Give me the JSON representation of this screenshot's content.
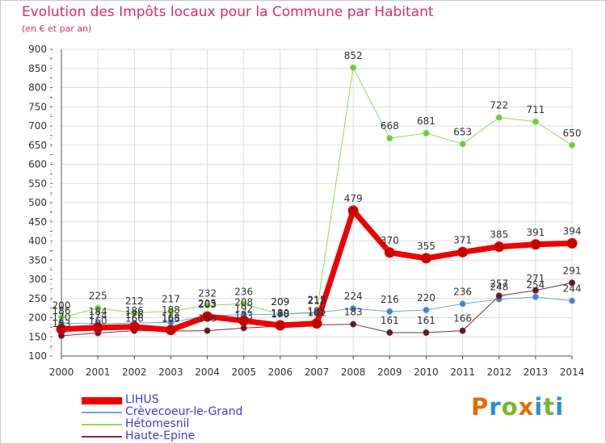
{
  "header": {
    "title": "Evolution des Impôts locaux pour la Commune par Habitant",
    "subtitle": "(en € et par an)"
  },
  "logo": {
    "text": "Proxiti",
    "colors": [
      "#e36c0a",
      "#2a8dd6",
      "#76b82a",
      "#e36c0a",
      "#2a8dd6",
      "#76b82a",
      "#2a8dd6"
    ]
  },
  "chart_data": {
    "type": "line",
    "title": "Evolution des Impôts locaux pour la Commune par Habitant",
    "subtitle": "(en € et par an)",
    "xlabel": "",
    "ylabel": "",
    "ylim": [
      100,
      900
    ],
    "yticks": [
      100,
      150,
      200,
      250,
      300,
      350,
      400,
      450,
      500,
      550,
      600,
      650,
      700,
      750,
      800,
      850,
      900
    ],
    "grid": true,
    "legend_position": "bottom-left",
    "x": [
      2000,
      2001,
      2002,
      2003,
      2004,
      2005,
      2006,
      2007,
      2008,
      2009,
      2010,
      2011,
      2012,
      2013,
      2014
    ],
    "series": [
      {
        "name": "Hétomesnil",
        "color": "#8fdc5a",
        "marker": "#6cc93a",
        "width": 1,
        "values": [
          200,
          225,
          212,
          217,
          232,
          236,
          209,
          215,
          852,
          668,
          681,
          653,
          722,
          711,
          650
        ]
      },
      {
        "name": "Crèvecoeur-le-Grand",
        "color": "#6fa8dc",
        "marker": "#3d85c6",
        "width": 1,
        "values": [
          186,
          184,
          186,
          188,
          205,
          208,
          209,
          213,
          224,
          216,
          220,
          236,
          248,
          254,
          244
        ]
      },
      {
        "name": "Haute-Epine",
        "color": "#7b2f3a",
        "marker": "#5e1a25",
        "width": 1,
        "values": [
          153,
          160,
          166,
          165,
          166,
          173,
          178,
          181,
          183,
          161,
          161,
          166,
          257,
          271,
          291
        ]
      },
      {
        "name": "LIHUS",
        "color": "#ee0000",
        "marker": "#c40000",
        "width": 7,
        "values": [
          170,
          174,
          176,
          168,
          203,
          192,
          180,
          185,
          479,
          370,
          355,
          371,
          385,
          391,
          394
        ]
      }
    ],
    "value_labels": [
      {
        "text": "200",
        "x": 2000,
        "y": 200
      },
      {
        "text": "225",
        "x": 2001,
        "y": 225
      },
      {
        "text": "212",
        "x": 2002,
        "y": 212
      },
      {
        "text": "217",
        "x": 2003,
        "y": 217
      },
      {
        "text": "232",
        "x": 2004,
        "y": 232
      },
      {
        "text": "236",
        "x": 2005,
        "y": 236
      },
      {
        "text": "209",
        "x": 2006,
        "y": 209
      },
      {
        "text": "215",
        "x": 2007,
        "y": 215
      },
      {
        "text": "852",
        "x": 2008,
        "y": 852
      },
      {
        "text": "668",
        "x": 2009,
        "y": 668
      },
      {
        "text": "681",
        "x": 2010,
        "y": 681
      },
      {
        "text": "653",
        "x": 2011,
        "y": 653
      },
      {
        "text": "722",
        "x": 2012,
        "y": 722
      },
      {
        "text": "711",
        "x": 2013,
        "y": 711
      },
      {
        "text": "650",
        "x": 2014,
        "y": 650
      },
      {
        "text": "186",
        "x": 2000,
        "y": 186
      },
      {
        "text": "184",
        "x": 2001,
        "y": 184
      },
      {
        "text": "186",
        "x": 2002,
        "y": 186
      },
      {
        "text": "188",
        "x": 2003,
        "y": 188
      },
      {
        "text": "205",
        "x": 2004,
        "y": 205
      },
      {
        "text": "208",
        "x": 2005,
        "y": 208
      },
      {
        "text": "209",
        "x": 2006,
        "y": 209
      },
      {
        "text": "213",
        "x": 2007,
        "y": 213
      },
      {
        "text": "224",
        "x": 2008,
        "y": 224
      },
      {
        "text": "216",
        "x": 2009,
        "y": 216
      },
      {
        "text": "220",
        "x": 2010,
        "y": 220
      },
      {
        "text": "236",
        "x": 2011,
        "y": 236
      },
      {
        "text": "248",
        "x": 2012,
        "y": 248
      },
      {
        "text": "254",
        "x": 2013,
        "y": 254
      },
      {
        "text": "244",
        "x": 2014,
        "y": 244
      },
      {
        "text": "153",
        "x": 2000,
        "y": 153
      },
      {
        "text": "160",
        "x": 2001,
        "y": 160
      },
      {
        "text": "166",
        "x": 2002,
        "y": 166
      },
      {
        "text": "165",
        "x": 2003,
        "y": 165
      },
      {
        "text": "166",
        "x": 2004,
        "y": 166
      },
      {
        "text": "173",
        "x": 2005,
        "y": 173
      },
      {
        "text": "178",
        "x": 2006,
        "y": 178
      },
      {
        "text": "181",
        "x": 2007,
        "y": 181
      },
      {
        "text": "183",
        "x": 2008,
        "y": 183
      },
      {
        "text": "161",
        "x": 2009,
        "y": 161
      },
      {
        "text": "161",
        "x": 2010,
        "y": 161
      },
      {
        "text": "166",
        "x": 2011,
        "y": 166
      },
      {
        "text": "257",
        "x": 2012,
        "y": 257
      },
      {
        "text": "271",
        "x": 2013,
        "y": 271
      },
      {
        "text": "291",
        "x": 2014,
        "y": 291
      },
      {
        "text": "170",
        "x": 2000,
        "y": 170
      },
      {
        "text": "174",
        "x": 2001,
        "y": 174
      },
      {
        "text": "176",
        "x": 2002,
        "y": 176
      },
      {
        "text": "168",
        "x": 2003,
        "y": 168
      },
      {
        "text": "203",
        "x": 2004,
        "y": 203
      },
      {
        "text": "192",
        "x": 2005,
        "y": 192
      },
      {
        "text": "180",
        "x": 2006,
        "y": 180
      },
      {
        "text": "185",
        "x": 2007,
        "y": 185
      },
      {
        "text": "479",
        "x": 2008,
        "y": 479
      },
      {
        "text": "370",
        "x": 2009,
        "y": 370
      },
      {
        "text": "355",
        "x": 2010,
        "y": 355
      },
      {
        "text": "371",
        "x": 2011,
        "y": 371
      },
      {
        "text": "385",
        "x": 2012,
        "y": 385
      },
      {
        "text": "391",
        "x": 2013,
        "y": 391
      },
      {
        "text": "394",
        "x": 2014,
        "y": 394
      }
    ]
  },
  "legend": [
    {
      "name": "LIHUS",
      "color": "#ee0000",
      "width": 9
    },
    {
      "name": "Crèvecoeur-le-Grand",
      "color": "#6fa8dc",
      "width": 2
    },
    {
      "name": "Hétomesnil",
      "color": "#8fdc5a",
      "width": 2
    },
    {
      "name": "Haute-Epine",
      "color": "#7b2f3a",
      "width": 2
    }
  ]
}
